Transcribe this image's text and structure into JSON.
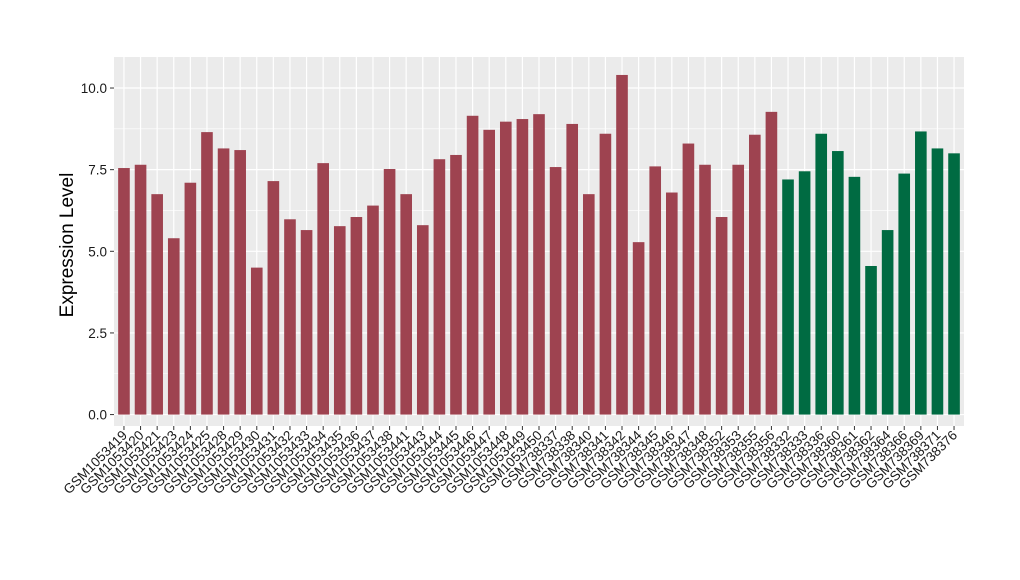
{
  "chart_data": {
    "type": "bar",
    "title": "",
    "xlabel": "",
    "ylabel": "Expression Level",
    "ylim": [
      -0.35,
      10.95
    ],
    "yticks": [
      0.0,
      2.5,
      5.0,
      7.5,
      10.0
    ],
    "ytick_labels": [
      "0.0",
      "2.5",
      "5.0",
      "7.5",
      "10.0"
    ],
    "grid": true,
    "legend": "none",
    "colors": {
      "group1": "#9e4350",
      "group2": "#006b42",
      "panel": "#ebebeb",
      "grid": "#ffffff"
    },
    "categories": [
      "GSM1053419",
      "GSM1053420",
      "GSM1053421",
      "GSM1053423",
      "GSM1053424",
      "GSM1053425",
      "GSM1053428",
      "GSM1053429",
      "GSM1053430",
      "GSM1053431",
      "GSM1053432",
      "GSM1053433",
      "GSM1053434",
      "GSM1053435",
      "GSM1053436",
      "GSM1053437",
      "GSM1053438",
      "GSM1053441",
      "GSM1053443",
      "GSM1053444",
      "GSM1053445",
      "GSM1053446",
      "GSM1053447",
      "GSM1053448",
      "GSM1053449",
      "GSM1053450",
      "GSM738337",
      "GSM738338",
      "GSM738340",
      "GSM738341",
      "GSM738342",
      "GSM738344",
      "GSM738345",
      "GSM738346",
      "GSM738347",
      "GSM738348",
      "GSM738352",
      "GSM738353",
      "GSM738355",
      "GSM738356",
      "GSM738332",
      "GSM738333",
      "GSM738336",
      "GSM738360",
      "GSM738361",
      "GSM738362",
      "GSM738364",
      "GSM738366",
      "GSM738369",
      "GSM738371",
      "GSM738376"
    ],
    "values": [
      7.55,
      7.65,
      6.75,
      5.4,
      7.1,
      8.65,
      8.15,
      8.1,
      4.5,
      7.15,
      5.98,
      5.65,
      7.7,
      5.77,
      6.05,
      6.4,
      7.52,
      6.75,
      5.8,
      7.82,
      7.95,
      9.15,
      8.72,
      8.97,
      9.05,
      9.2,
      7.58,
      8.9,
      6.75,
      8.6,
      10.4,
      5.28,
      7.6,
      6.8,
      8.3,
      7.65,
      6.05,
      7.65,
      8.57,
      9.27,
      7.2,
      7.45,
      8.6,
      8.07,
      7.28,
      4.55,
      5.65,
      7.38,
      8.67,
      8.15,
      8.0
    ],
    "groups": [
      1,
      1,
      1,
      1,
      1,
      1,
      1,
      1,
      1,
      1,
      1,
      1,
      1,
      1,
      1,
      1,
      1,
      1,
      1,
      1,
      1,
      1,
      1,
      1,
      1,
      1,
      1,
      1,
      1,
      1,
      1,
      1,
      1,
      1,
      1,
      1,
      1,
      1,
      1,
      1,
      2,
      2,
      2,
      2,
      2,
      2,
      2,
      2,
      2,
      2,
      2
    ]
  }
}
